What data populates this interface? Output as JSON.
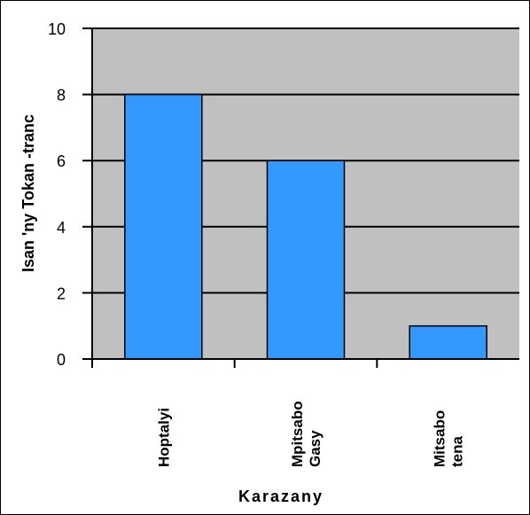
{
  "chart_data": {
    "type": "bar",
    "categories": [
      [
        "Hoptalyi"
      ],
      [
        "Mpitsabo",
        "Gasy"
      ],
      [
        "Mitsabo",
        "tena"
      ]
    ],
    "values": [
      8,
      6,
      1
    ],
    "xlabel": "Karazany",
    "ylabel": "Isan 'ny Tokan -tranc",
    "ylim": [
      0,
      10
    ],
    "yticks": [
      0,
      2,
      4,
      6,
      8,
      10
    ],
    "grid": true,
    "legend": "none",
    "colors": {
      "plot_background": "#c0c0c0",
      "bar_fill": "#3399ff",
      "bar_stroke": "#000000",
      "gridline": "#000000"
    }
  }
}
